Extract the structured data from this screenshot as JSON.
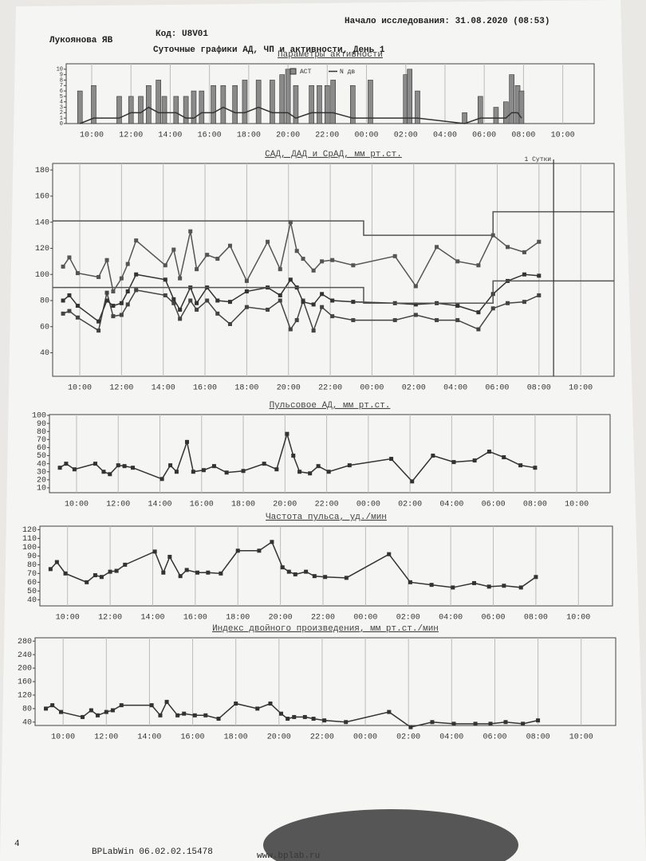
{
  "header": {
    "start": "Начало исследования: 31.08.2020 (08:53)",
    "patient": "Лукоянова ЯВ",
    "code": "Код: U8V01",
    "title": "Суточные графики АД, ЧП и активности, День 1"
  },
  "footer": {
    "page": "4",
    "software": "BPLabWin 06.02.02.15478",
    "site": "www.bplab.ru"
  },
  "chart_data": [
    {
      "type": "bar",
      "title": "Параметры активности",
      "legend": "top",
      "grid": "x",
      "x": [
        9.4,
        10.1,
        11.4,
        12.0,
        12.5,
        12.9,
        13.4,
        13.7,
        14.3,
        14.8,
        15.2,
        15.6,
        16.2,
        16.7,
        17.3,
        17.8,
        18.5,
        19.2,
        19.7,
        20.0,
        20.4,
        21.2,
        21.6,
        22.0,
        22.3,
        23.3,
        24.2,
        26.0,
        26.2,
        26.6,
        29.0,
        29.8,
        30.6,
        31.1,
        31.4,
        31.7,
        31.9
      ],
      "series": [
        {
          "name": "АСТ",
          "type": "bar",
          "color": "#8a8a8a",
          "values": [
            6,
            7,
            5,
            5,
            5,
            7,
            8,
            5,
            5,
            5,
            6,
            6,
            7,
            7,
            7,
            8,
            8,
            8,
            9,
            10,
            7,
            7,
            7,
            7,
            8,
            7,
            8,
            9,
            10,
            6,
            2,
            5,
            3,
            4,
            9,
            7,
            6
          ]
        },
        {
          "name": "N дв",
          "type": "line",
          "color": "#333333",
          "values": [
            0,
            1,
            1,
            2,
            2,
            3,
            2,
            2,
            2,
            1,
            1,
            2,
            2,
            3,
            2,
            2,
            3,
            2,
            2,
            2,
            1,
            2,
            2,
            2,
            2,
            1,
            1,
            1,
            1,
            1,
            0,
            1,
            1,
            1,
            2,
            2,
            1
          ]
        }
      ],
      "xlim": [
        8.7,
        35.6
      ],
      "ylim": [
        0,
        11
      ],
      "yticks": [
        0,
        1,
        2,
        3,
        4,
        5,
        6,
        7,
        8,
        9,
        10
      ],
      "xticks": [
        {
          "value": 10,
          "label": "10:00"
        },
        {
          "value": 12,
          "label": "12:00"
        },
        {
          "value": 14,
          "label": "14:00"
        },
        {
          "value": 16,
          "label": "16:00"
        },
        {
          "value": 18,
          "label": "18:00"
        },
        {
          "value": 20,
          "label": "20:00"
        },
        {
          "value": 22,
          "label": "22:00"
        },
        {
          "value": 24,
          "label": "00:00"
        },
        {
          "value": 26,
          "label": "02:00"
        },
        {
          "value": 28,
          "label": "04:00"
        },
        {
          "value": 30,
          "label": "06:00"
        },
        {
          "value": 32,
          "label": "08:00"
        },
        {
          "value": 34,
          "label": "10:00"
        }
      ]
    },
    {
      "type": "line",
      "title": "САД, ДАД и СрАД, мм рт.ст.",
      "grid": "x",
      "x": [
        9.2,
        9.5,
        9.9,
        10.9,
        11.3,
        11.6,
        12.0,
        12.3,
        12.7,
        14.1,
        14.5,
        14.8,
        15.3,
        15.6,
        16.1,
        16.6,
        17.2,
        18.0,
        19.0,
        19.6,
        20.1,
        20.4,
        20.7,
        21.2,
        21.6,
        22.1,
        23.1,
        25.1,
        26.1,
        27.1,
        28.1,
        29.1,
        29.8,
        30.5,
        31.3,
        32.0
      ],
      "series": [
        {
          "color": "#555555",
          "marker": "square",
          "values": [
            106,
            113,
            101,
            98,
            111,
            87,
            97,
            108,
            126,
            107,
            119,
            97,
            133,
            104,
            115,
            112,
            122,
            95,
            125,
            104,
            140,
            118,
            112,
            103,
            110,
            111,
            107,
            114,
            91,
            121,
            110,
            107,
            130,
            121,
            117,
            125
          ]
        },
        {
          "color": "#444444",
          "marker": "square",
          "values": [
            70,
            72,
            67,
            57,
            86,
            68,
            69,
            77,
            88,
            84,
            78,
            66,
            80,
            73,
            80,
            70,
            62,
            75,
            73,
            80,
            58,
            65,
            80,
            57,
            75,
            68,
            65,
            65,
            69,
            65,
            65,
            58,
            74,
            78,
            79,
            84
          ]
        },
        {
          "color": "#333333",
          "marker": "square",
          "values": [
            80,
            84,
            76,
            64,
            80,
            76,
            78,
            87,
            100,
            96,
            81,
            73,
            90,
            78,
            90,
            80,
            79,
            87,
            90,
            84,
            96,
            90,
            79,
            77,
            85,
            80,
            79,
            78,
            77,
            78,
            76,
            71,
            85,
            95,
            100,
            99
          ]
        },
        {
          "color": "#555555",
          "x": [
            8.7,
            23.6,
            23.6,
            29.8,
            29.8,
            35.6
          ],
          "values": [
            141,
            141,
            130,
            130,
            148,
            148
          ]
        },
        {
          "color": "#555555",
          "x": [
            8.7,
            23.6,
            23.6,
            29.8,
            29.8,
            35.6
          ],
          "values": [
            90,
            90,
            78,
            78,
            95,
            95
          ]
        }
      ],
      "annotation": {
        "text": "1 Сутки",
        "x": 32.7
      },
      "xlim": [
        8.7,
        35.6
      ],
      "ylim": [
        22,
        185
      ],
      "yticks": [
        40,
        60,
        80,
        100,
        120,
        140,
        160,
        180
      ],
      "xticks": [
        {
          "value": 10,
          "label": "10:00"
        },
        {
          "value": 12,
          "label": "12:00"
        },
        {
          "value": 14,
          "label": "14:00"
        },
        {
          "value": 16,
          "label": "16:00"
        },
        {
          "value": 18,
          "label": "18:00"
        },
        {
          "value": 20,
          "label": "20:00"
        },
        {
          "value": 22,
          "label": "22:00"
        },
        {
          "value": 24,
          "label": "00:00"
        },
        {
          "value": 26,
          "label": "02:00"
        },
        {
          "value": 28,
          "label": "04:00"
        },
        {
          "value": 30,
          "label": "06:00"
        },
        {
          "value": 32,
          "label": "08:00"
        },
        {
          "value": 34,
          "label": "10:00"
        }
      ]
    },
    {
      "type": "line",
      "title": "Пульсовое АД, мм рт.ст.",
      "grid": "x",
      "x": [
        9.2,
        9.5,
        9.9,
        10.9,
        11.3,
        11.6,
        12.0,
        12.3,
        12.7,
        14.1,
        14.5,
        14.8,
        15.3,
        15.6,
        16.1,
        16.6,
        17.2,
        18.0,
        19.0,
        19.6,
        20.1,
        20.4,
        20.7,
        21.2,
        21.6,
        22.1,
        23.1,
        25.1,
        26.1,
        27.1,
        28.1,
        29.1,
        29.8,
        30.5,
        31.3,
        32.0
      ],
      "series": [
        {
          "color": "#333333",
          "marker": "square",
          "values": [
            35,
            40,
            33,
            40,
            30,
            27,
            38,
            37,
            35,
            21,
            38,
            30,
            67,
            30,
            32,
            37,
            29,
            31,
            40,
            33,
            77,
            50,
            30,
            28,
            37,
            30,
            38,
            46,
            18,
            50,
            42,
            44,
            55,
            48,
            38,
            35
          ]
        }
      ],
      "xlim": [
        8.7,
        35.6
      ],
      "ylim": [
        4,
        101
      ],
      "yticks": [
        10,
        20,
        30,
        40,
        50,
        60,
        70,
        80,
        90,
        100
      ],
      "xticks": [
        {
          "value": 10,
          "label": "10:00"
        },
        {
          "value": 12,
          "label": "12:00"
        },
        {
          "value": 14,
          "label": "14:00"
        },
        {
          "value": 16,
          "label": "16:00"
        },
        {
          "value": 18,
          "label": "18:00"
        },
        {
          "value": 20,
          "label": "20:00"
        },
        {
          "value": 22,
          "label": "22:00"
        },
        {
          "value": 24,
          "label": "00:00"
        },
        {
          "value": 26,
          "label": "02:00"
        },
        {
          "value": 28,
          "label": "04:00"
        },
        {
          "value": 30,
          "label": "06:00"
        },
        {
          "value": 32,
          "label": "08:00"
        },
        {
          "value": 34,
          "label": "10:00"
        }
      ]
    },
    {
      "type": "line",
      "title": "Частота пульса, уд./мин",
      "grid": "x",
      "x": [
        9.2,
        9.5,
        9.9,
        10.9,
        11.3,
        11.6,
        12.0,
        12.3,
        12.7,
        14.1,
        14.5,
        14.8,
        15.3,
        15.6,
        16.1,
        16.6,
        17.2,
        18.0,
        19.0,
        19.6,
        20.1,
        20.4,
        20.7,
        21.2,
        21.6,
        22.1,
        23.1,
        25.1,
        26.1,
        27.1,
        28.1,
        29.1,
        29.8,
        30.5,
        31.3,
        32.0
      ],
      "series": [
        {
          "color": "#333333",
          "marker": "square",
          "values": [
            75,
            83,
            70,
            60,
            68,
            66,
            72,
            73,
            80,
            95,
            71,
            89,
            67,
            74,
            71,
            71,
            70,
            96,
            96,
            106,
            77,
            72,
            69,
            72,
            67,
            66,
            65,
            92,
            60,
            57,
            54,
            59,
            55,
            56,
            54,
            66
          ]
        }
      ],
      "xlim": [
        8.7,
        35.6
      ],
      "ylim": [
        33,
        124
      ],
      "yticks": [
        40,
        50,
        60,
        70,
        80,
        90,
        100,
        110,
        120
      ],
      "xticks": [
        {
          "value": 10,
          "label": "10:00"
        },
        {
          "value": 12,
          "label": "12:00"
        },
        {
          "value": 14,
          "label": "14:00"
        },
        {
          "value": 16,
          "label": "16:00"
        },
        {
          "value": 18,
          "label": "18:00"
        },
        {
          "value": 20,
          "label": "20:00"
        },
        {
          "value": 22,
          "label": "22:00"
        },
        {
          "value": 24,
          "label": "00:00"
        },
        {
          "value": 26,
          "label": "02:00"
        },
        {
          "value": 28,
          "label": "04:00"
        },
        {
          "value": 30,
          "label": "06:00"
        },
        {
          "value": 32,
          "label": "08:00"
        },
        {
          "value": 34,
          "label": "10:00"
        }
      ]
    },
    {
      "type": "line",
      "title": "Индекс двойного произведения, мм рт.ст./мин",
      "grid": "x",
      "x": [
        9.2,
        9.5,
        9.9,
        10.9,
        11.3,
        11.6,
        12.0,
        12.3,
        12.7,
        14.1,
        14.5,
        14.8,
        15.3,
        15.6,
        16.1,
        16.6,
        17.2,
        18.0,
        19.0,
        19.6,
        20.1,
        20.4,
        20.7,
        21.2,
        21.6,
        22.1,
        23.1,
        25.1,
        26.1,
        27.1,
        28.1,
        29.1,
        29.8,
        30.5,
        31.3,
        32.0
      ],
      "series": [
        {
          "color": "#333333",
          "marker": "square",
          "values": [
            80,
            90,
            70,
            55,
            75,
            60,
            70,
            75,
            90,
            90,
            60,
            100,
            60,
            65,
            60,
            60,
            50,
            95,
            80,
            95,
            65,
            50,
            55,
            55,
            50,
            45,
            40,
            70,
            25,
            40,
            35,
            35,
            35,
            40,
            35,
            45
          ]
        }
      ],
      "xlim": [
        8.7,
        35.6
      ],
      "ylim": [
        30,
        290
      ],
      "yticks": [
        40,
        80,
        120,
        160,
        200,
        240,
        280
      ],
      "xticks": [
        {
          "value": 10,
          "label": "10:00"
        },
        {
          "value": 12,
          "label": "12:00"
        },
        {
          "value": 14,
          "label": "14:00"
        },
        {
          "value": 16,
          "label": "16:00"
        },
        {
          "value": 18,
          "label": "18:00"
        },
        {
          "value": 20,
          "label": "20:00"
        },
        {
          "value": 22,
          "label": "22:00"
        },
        {
          "value": 24,
          "label": "00:00"
        },
        {
          "value": 26,
          "label": "02:00"
        },
        {
          "value": 28,
          "label": "04:00"
        },
        {
          "value": 30,
          "label": "06:00"
        },
        {
          "value": 32,
          "label": "08:00"
        },
        {
          "value": 34,
          "label": "10:00"
        }
      ]
    }
  ]
}
